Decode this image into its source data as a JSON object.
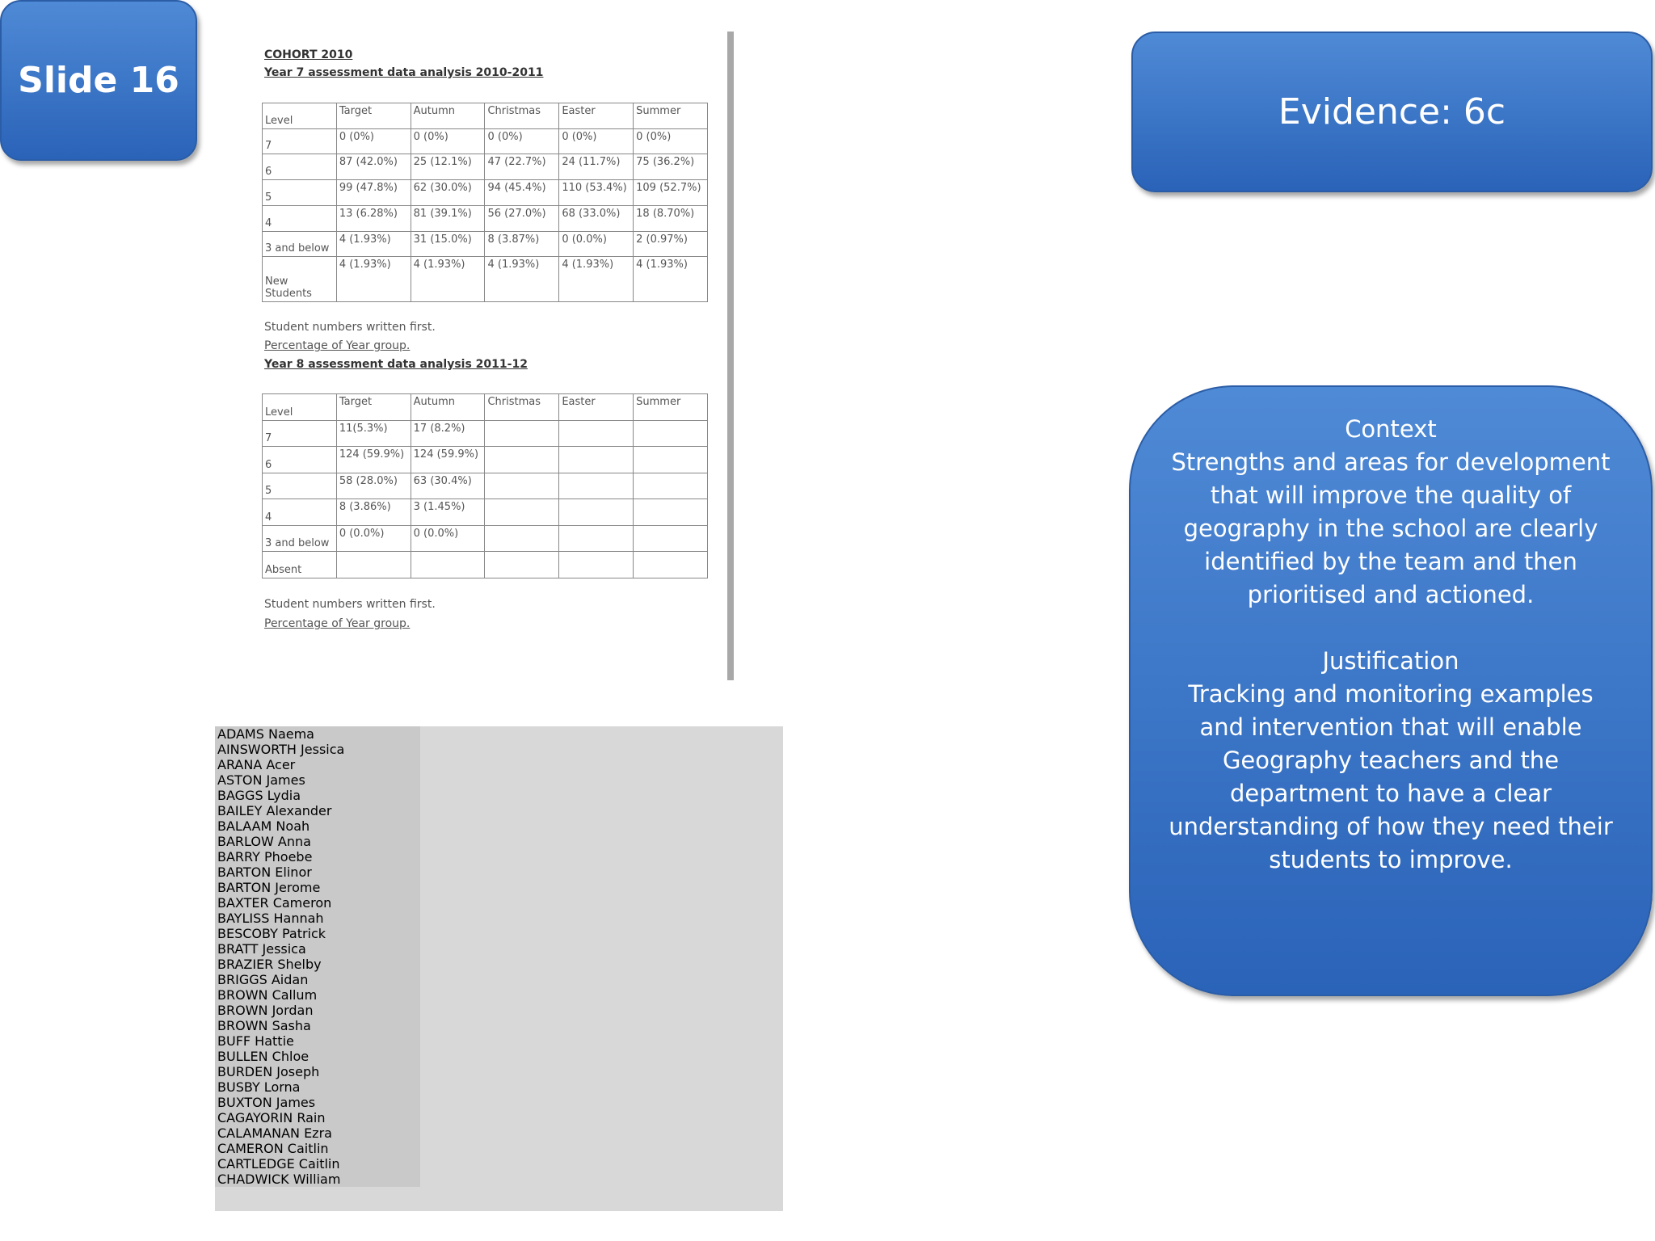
{
  "slide_label": "Slide 16",
  "evidence": {
    "title": "Evidence: 6c"
  },
  "context": {
    "heading": "Context",
    "body": "Strengths and areas for development that will improve the quality of geography in the school are clearly identified by the team and then prioritised and actioned.",
    "justification_heading": "Justification",
    "justification_body": "Tracking and monitoring examples and intervention that will enable Geography teachers and the department to have a clear understanding of how they need their students to improve."
  },
  "document": {
    "cohort": "COHORT 2010",
    "table1": {
      "title": "Year 7 assessment data analysis 2010-2011",
      "header": [
        "Level",
        "Target",
        "Autumn",
        "Christmas",
        "Easter",
        "Summer"
      ],
      "rows": [
        [
          "7",
          "0 (0%)",
          "0 (0%)",
          "0 (0%)",
          "0 (0%)",
          "0 (0%)"
        ],
        [
          "6",
          "87 (42.0%)",
          "25 (12.1%)",
          "47 (22.7%)",
          "24 (11.7%)",
          "75 (36.2%)"
        ],
        [
          "5",
          "99 (47.8%)",
          "62 (30.0%)",
          "94 (45.4%)",
          "110 (53.4%)",
          "109 (52.7%)"
        ],
        [
          "4",
          "13 (6.28%)",
          "81 (39.1%)",
          "56 (27.0%)",
          "68 (33.0%)",
          "18 (8.70%)"
        ],
        [
          "3 and below",
          "4 (1.93%)",
          "31 (15.0%)",
          "8 (3.87%)",
          "0 (0.0%)",
          "2 (0.97%)"
        ],
        [
          "New Students",
          "4 (1.93%)",
          "4 (1.93%)",
          "4 (1.93%)",
          "4 (1.93%)",
          "4 (1.93%)"
        ]
      ]
    },
    "note1": "Student numbers written first.",
    "note2": "Percentage of Year group.",
    "table2": {
      "title": "Year 8 assessment data analysis 2011-12",
      "header": [
        "Level",
        "Target",
        "Autumn",
        "Christmas",
        "Easter",
        "Summer"
      ],
      "rows": [
        [
          "7",
          "11(5.3%)",
          "17 (8.2%)"
        ],
        [
          "6",
          "124 (59.9%)",
          "124 (59.9%)"
        ],
        [
          "5",
          "58 (28.0%)",
          "63 (30.4%)"
        ],
        [
          "4",
          "8 (3.86%)",
          "3 (1.45%)"
        ],
        [
          "3 and below",
          "0 (0.0%)",
          "0 (0.0%)"
        ],
        [
          "Absent"
        ]
      ]
    },
    "note3": "Student numbers written first.",
    "note4": "Percentage of Year group."
  },
  "spreadsheet": {
    "names": [
      "ADAMS Naema",
      "AINSWORTH Jessica",
      "ARANA Acer",
      "ASTON James",
      "BAGGS Lydia",
      "BAILEY Alexander",
      "BALAAM Noah",
      "BARLOW Anna",
      "BARRY Phoebe",
      "BARTON Elinor",
      "BARTON Jerome",
      "BAXTER Cameron",
      "BAYLISS Hannah",
      "BESCOBY Patrick",
      "BRATT Jessica",
      "BRAZIER Shelby",
      "BRIGGS Aidan",
      "BROWN Callum",
      "BROWN Jordan",
      "BROWN Sasha",
      "BUFF Hattie",
      "BULLEN Chloe",
      "BURDEN Joseph",
      "BUSBY Lorna",
      "BUXTON James",
      "CAGAYORIN Rain",
      "CALAMANAN Ezra",
      "CAMERON Caitlin",
      "CARTLEDGE Caitlin",
      "CHADWICK William"
    ]
  }
}
